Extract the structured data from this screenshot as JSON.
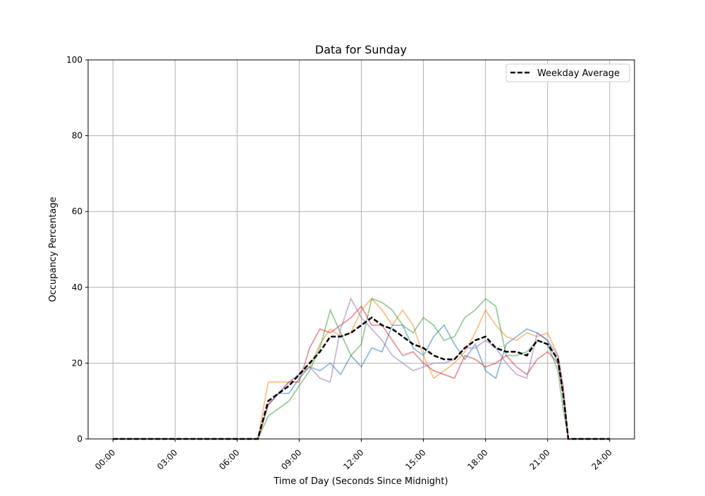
{
  "chart_data": {
    "type": "line",
    "title": "Data for Sunday",
    "xlabel": "Time of Day (Seconds Since Midnight)",
    "ylabel": "Occupancy Percentage",
    "xlim": [
      -1.2,
      25.2
    ],
    "ylim": [
      0,
      100
    ],
    "grid": true,
    "legend_placement": "top-right",
    "xticks": [
      0,
      3,
      6,
      9,
      12,
      15,
      18,
      21,
      24
    ],
    "xtick_labels": [
      "00:00",
      "03:00",
      "06:00",
      "09:00",
      "12:00",
      "15:00",
      "18:00",
      "21:00",
      "24:00"
    ],
    "yticks": [
      0,
      20,
      40,
      60,
      80,
      100
    ],
    "ytick_labels": [
      "0",
      "20",
      "40",
      "60",
      "80",
      "100"
    ],
    "x": [
      0,
      7,
      7.5,
      8,
      8.5,
      9,
      9.5,
      10,
      10.5,
      11,
      11.5,
      12,
      12.5,
      13,
      13.5,
      14,
      14.5,
      15,
      15.5,
      16,
      16.5,
      17,
      17.5,
      18,
      18.5,
      19,
      19.5,
      20,
      20.5,
      21,
      21.5,
      21.75,
      22,
      24
    ],
    "series": [
      {
        "color": "#1f77b4",
        "values": [
          0,
          0,
          9,
          12,
          12,
          16,
          19,
          18,
          20,
          17,
          22,
          19,
          24,
          23,
          30,
          30,
          24,
          22,
          27,
          30,
          25,
          21,
          25,
          18,
          16,
          25,
          27,
          29,
          28,
          26,
          20,
          12,
          0,
          0
        ]
      },
      {
        "color": "#ff7f0e",
        "values": [
          0,
          0,
          15,
          15,
          15,
          17,
          19,
          25,
          29,
          27,
          28,
          34,
          37,
          34,
          30,
          34,
          30,
          22,
          16,
          18,
          20,
          23,
          28,
          34,
          30,
          27,
          26,
          28,
          27,
          28,
          22,
          14,
          0,
          0
        ]
      },
      {
        "color": "#2ca02c",
        "values": [
          0,
          0,
          6,
          8,
          10,
          14,
          18,
          24,
          34,
          28,
          22,
          25,
          37,
          36,
          34,
          30,
          28,
          32,
          30,
          26,
          27,
          32,
          34,
          37,
          35,
          22,
          22,
          23,
          26,
          25,
          18,
          8,
          0,
          0
        ]
      },
      {
        "color": "#d62728",
        "values": [
          0,
          0,
          9,
          12,
          15,
          15,
          24,
          29,
          28,
          30,
          32,
          35,
          30,
          30,
          26,
          22,
          23,
          20,
          18,
          17,
          16,
          22,
          21,
          19,
          20,
          22,
          19,
          17,
          21,
          23,
          20,
          12,
          0,
          0
        ]
      },
      {
        "color": "#9467bd",
        "values": [
          0,
          0,
          9,
          12,
          15,
          17,
          19,
          16,
          15,
          29,
          37,
          32,
          29,
          26,
          22,
          20,
          18,
          19,
          20,
          20,
          21,
          24,
          24,
          26,
          24,
          20,
          17,
          16,
          28,
          26,
          22,
          14,
          0,
          0
        ]
      },
      {
        "name": "Weekday Average",
        "color": "#000000",
        "dashed": true,
        "values": [
          0,
          0,
          10,
          12,
          14,
          17,
          20,
          23,
          27,
          27,
          28,
          30,
          32,
          30,
          29,
          27,
          25,
          24,
          22,
          21,
          21,
          24,
          26,
          27,
          24,
          23,
          23,
          22,
          26,
          25,
          21,
          12,
          0,
          0
        ]
      }
    ]
  }
}
